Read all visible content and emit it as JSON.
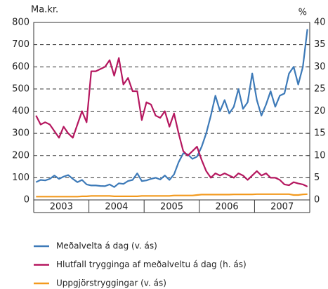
{
  "chart_data": {
    "type": "line",
    "y_unit_label": "Ma.kr.",
    "y2_unit_label": "%",
    "periods": [
      "2003",
      "2004",
      "2005",
      "2006",
      "2007"
    ],
    "ylim": [
      0,
      800
    ],
    "yticks": [
      0,
      100,
      200,
      300,
      400,
      500,
      600,
      700,
      800
    ],
    "y2lim": [
      0,
      40
    ],
    "y2ticks": [
      0,
      5,
      10,
      15,
      20,
      25,
      30,
      35,
      40
    ],
    "grid": true,
    "legend": "bottom",
    "series": [
      {
        "name": "Meðalvelta á dag (v. ás)",
        "color": "#3d7ab8",
        "axis": "y",
        "values": [
          80,
          90,
          88,
          95,
          110,
          95,
          105,
          112,
          95,
          80,
          90,
          70,
          65,
          65,
          63,
          62,
          70,
          58,
          75,
          72,
          85,
          90,
          120,
          85,
          88,
          95,
          100,
          92,
          110,
          90,
          115,
          170,
          210,
          205,
          185,
          195,
          240,
          300,
          380,
          470,
          400,
          450,
          390,
          420,
          500,
          410,
          440,
          570,
          450,
          380,
          430,
          490,
          420,
          470,
          480,
          570,
          600,
          520,
          600,
          770
        ]
      },
      {
        "name": "Hlutfall trygginga af meðalveltu á dag (h. ás)",
        "color": "#b5175f",
        "axis": "y2",
        "values": [
          19,
          17,
          17.5,
          17,
          15.5,
          14,
          16.5,
          15,
          14,
          17,
          20,
          17.5,
          29,
          29,
          29.5,
          30,
          31.5,
          28,
          32,
          26,
          27.5,
          24.5,
          24.5,
          18,
          22,
          21.5,
          19,
          18.5,
          20,
          16.5,
          19.5,
          15,
          11,
          10,
          11,
          12,
          9,
          6.5,
          5,
          6,
          5.5,
          6,
          5.5,
          5,
          6,
          5.5,
          4.5,
          5.5,
          6.5,
          5.5,
          6,
          5,
          5,
          4.5,
          3.5,
          3.3,
          4,
          3.7,
          3.5,
          3
        ]
      },
      {
        "name": "Uppgjörstryggingar (v. ás)",
        "color": "#f39a1e",
        "axis": "y",
        "values": [
          15,
          15,
          15,
          15,
          15,
          15,
          15,
          15,
          15,
          15,
          16,
          16,
          18,
          18,
          18,
          18,
          18,
          16,
          16,
          16,
          16,
          16,
          16,
          18,
          18,
          18,
          18,
          18,
          18,
          18,
          20,
          20,
          20,
          20,
          20,
          22,
          24,
          24,
          24,
          24,
          24,
          24,
          24,
          25,
          25,
          25,
          25,
          25,
          26,
          26,
          26,
          26,
          26,
          26,
          26,
          26,
          22,
          22,
          25,
          26
        ]
      }
    ]
  }
}
